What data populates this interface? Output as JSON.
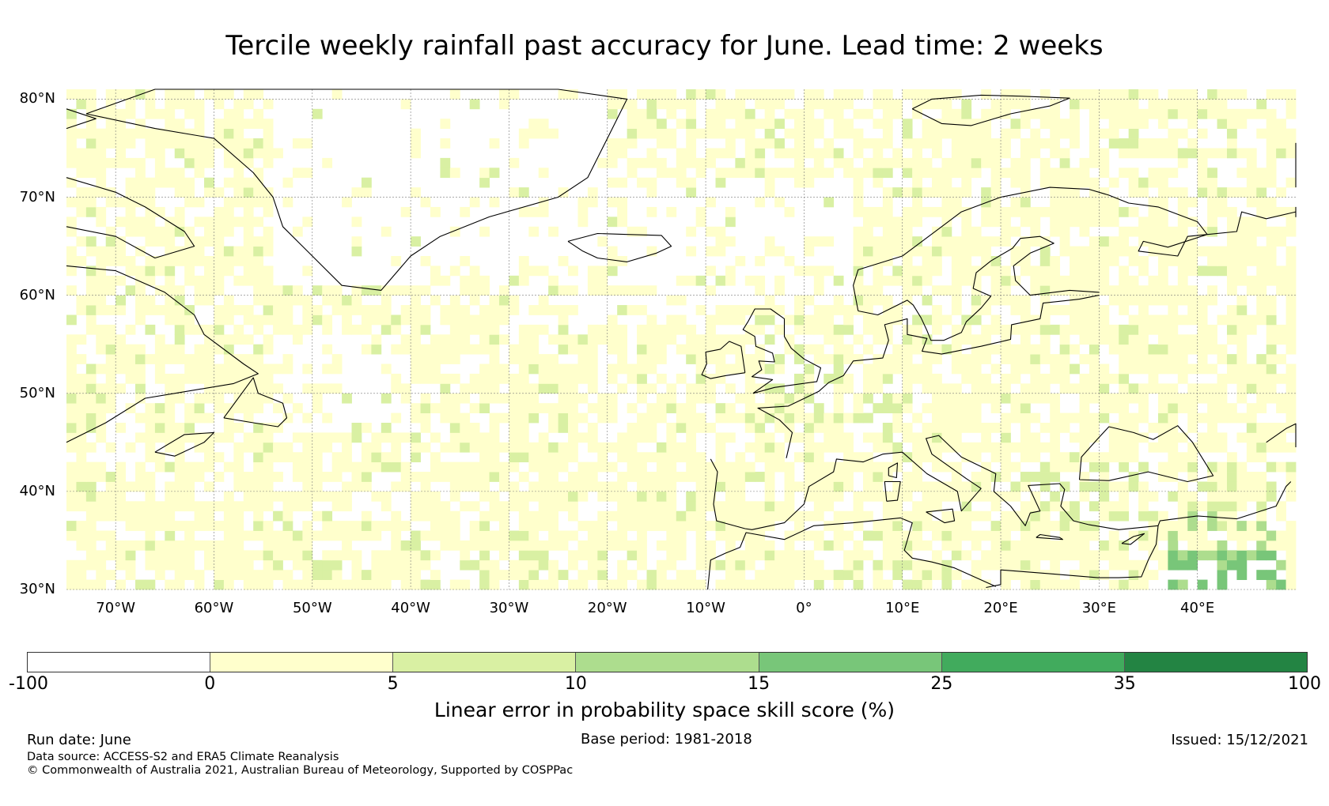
{
  "title": "Tercile weekly rainfall past accuracy for June. Lead time: 2 weeks",
  "map": {
    "lat_labels": [
      "80°N",
      "70°N",
      "60°N",
      "50°N",
      "40°N",
      "30°N"
    ],
    "lon_labels": [
      "70°W",
      "60°W",
      "50°W",
      "40°W",
      "30°W",
      "20°W",
      "10°W",
      "0°",
      "10°E",
      "20°E",
      "30°E",
      "40°E"
    ],
    "lat_range": [
      30,
      81
    ],
    "lon_range": [
      -75,
      50
    ],
    "grid": true,
    "ocean_color": "#ffffff",
    "category_colors": [
      "#ffffff",
      "#ffffcc",
      "#d9f0a3",
      "#addd8e",
      "#78c679",
      "#41ab5d",
      "#238443"
    ]
  },
  "colorbar": {
    "ticks": [
      "-100",
      "0",
      "5",
      "10",
      "15",
      "25",
      "35",
      "100"
    ],
    "colors": [
      "#ffffff",
      "#ffffcc",
      "#d9f0a3",
      "#addd8e",
      "#78c679",
      "#41ab5d",
      "#238443"
    ],
    "label": "Linear error in probability space skill score (%)"
  },
  "footer": {
    "run_date": "Run date: June",
    "base_period": "Base period: 1981-2018",
    "issued": "Issued: 15/12/2021",
    "data_source": "Data source: ACCESS-S2 and ERA5 Climate Reanalysis",
    "copyright": "© Commonwealth of Australia 2021, Australian Bureau of Meteorology, Supported by COSPPac"
  }
}
